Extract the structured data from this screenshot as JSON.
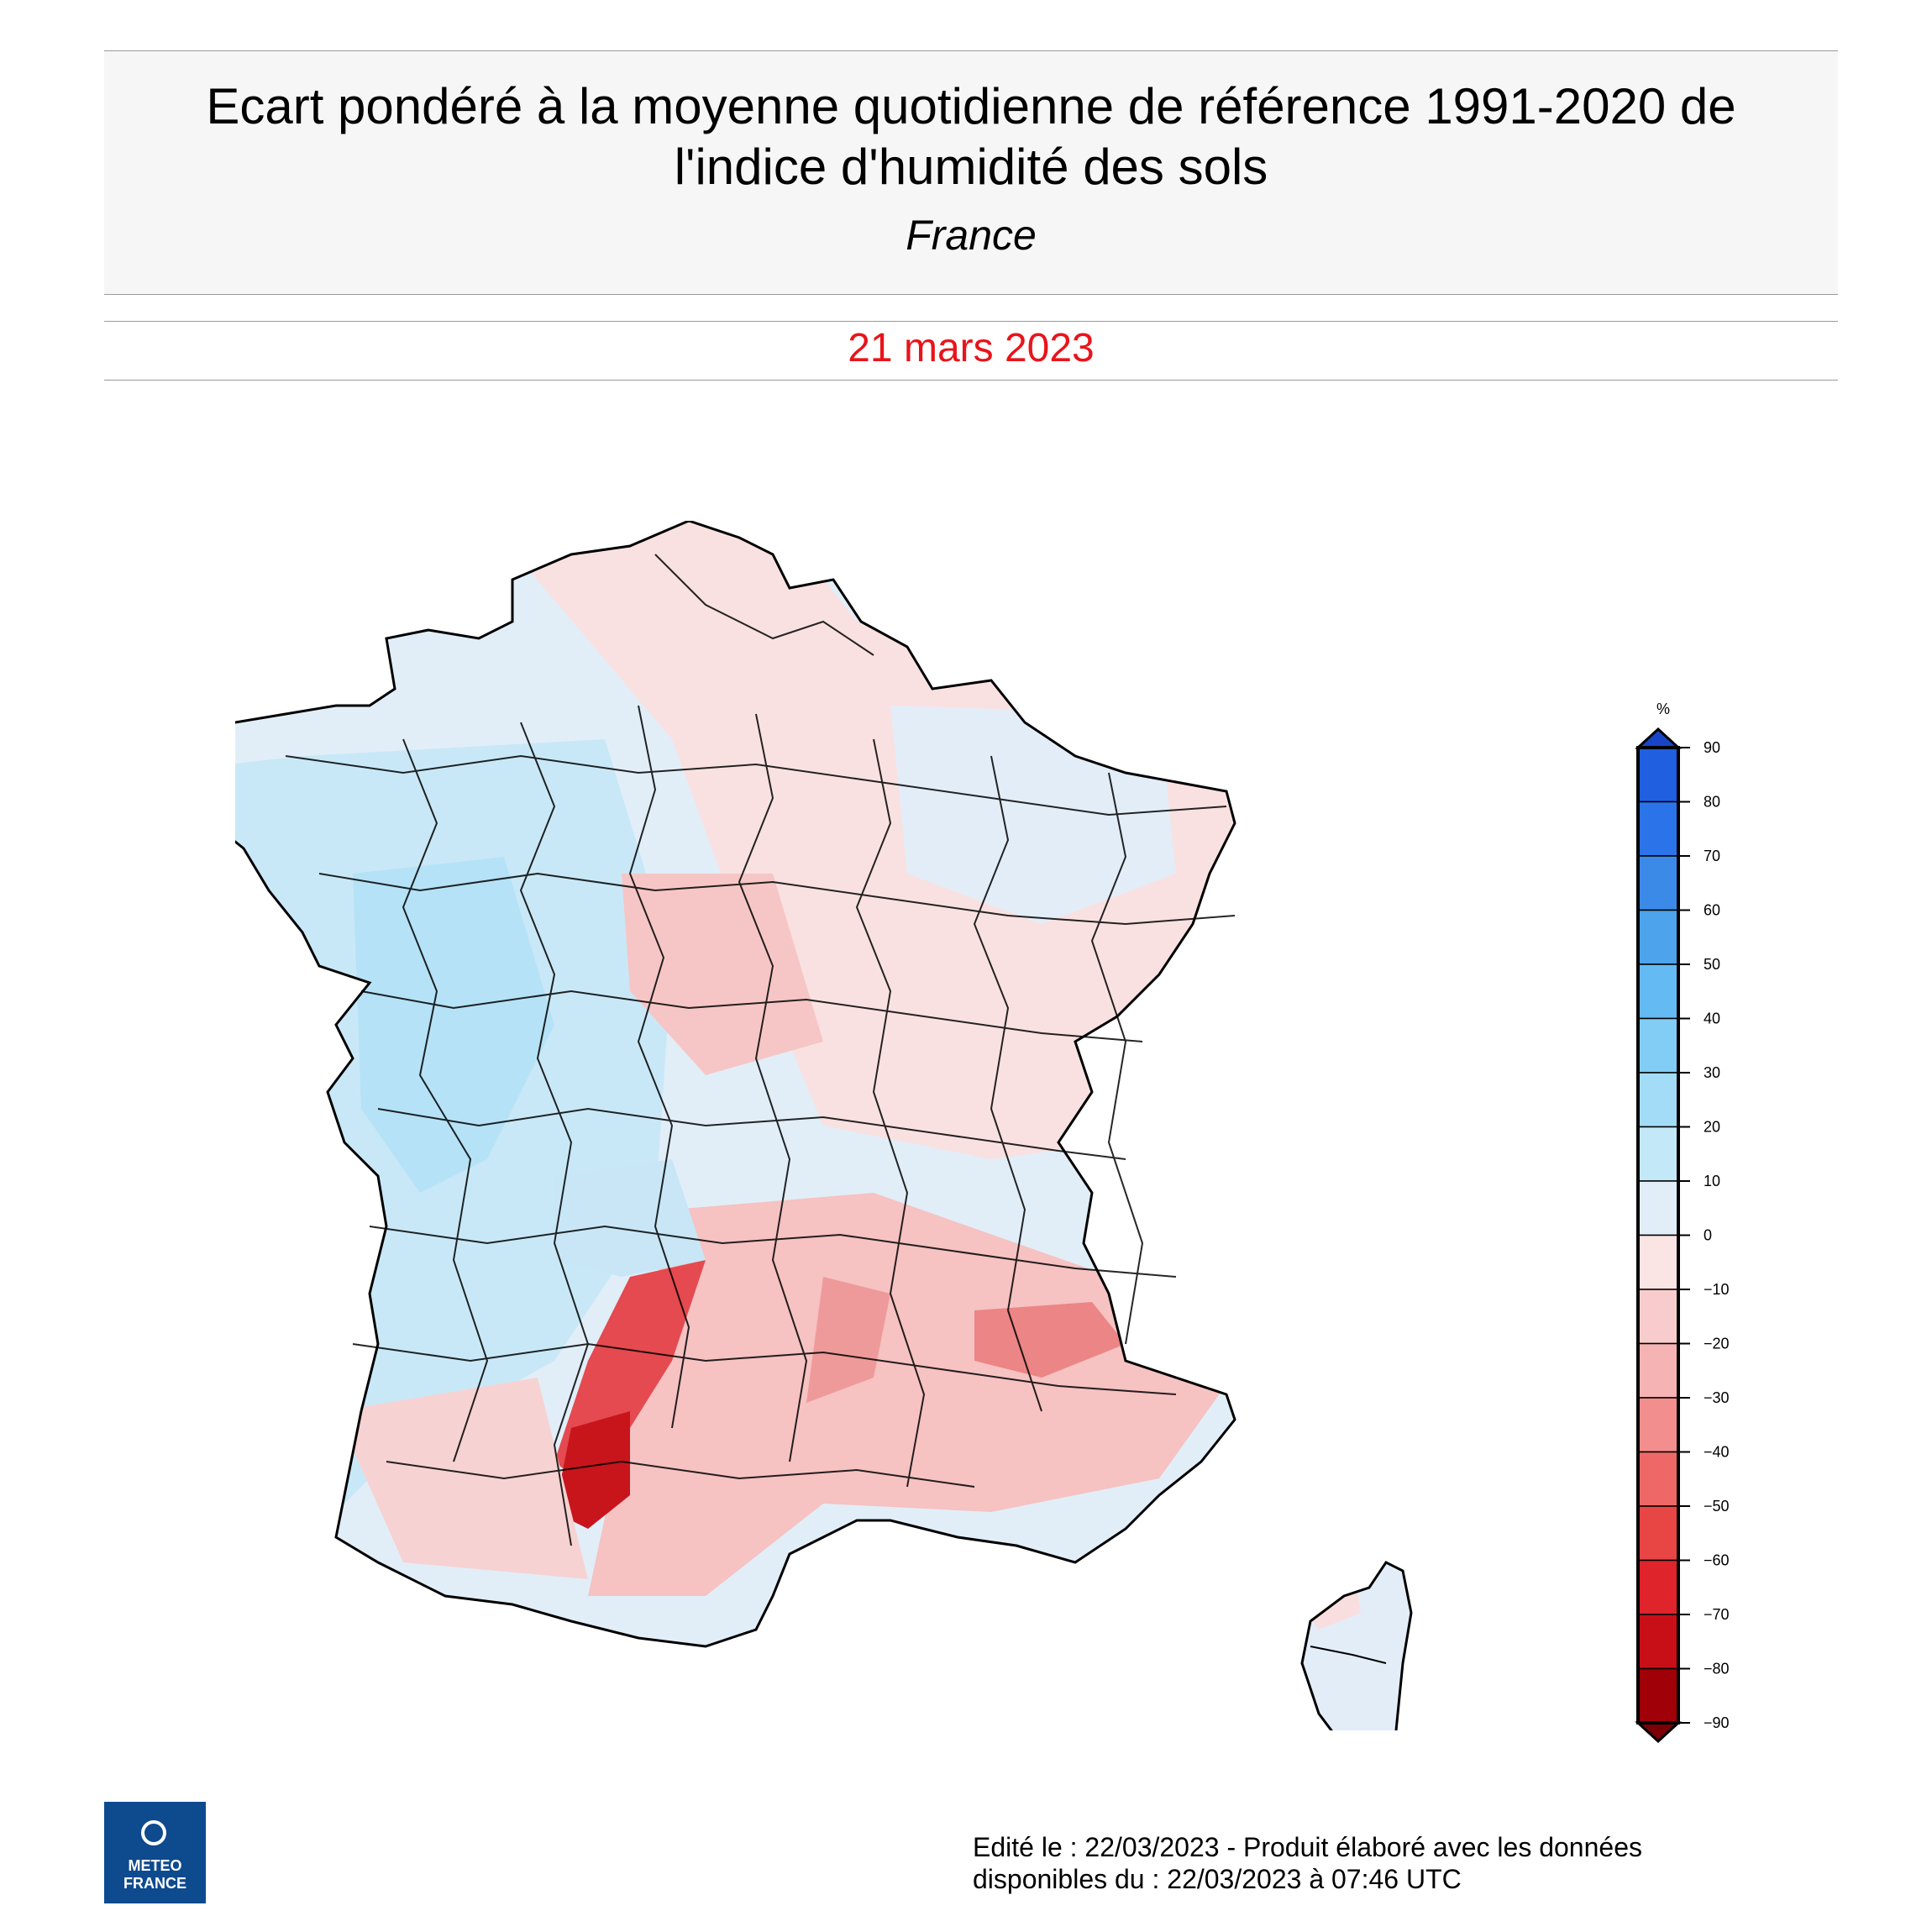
{
  "header": {
    "title_line1": "Ecart pondéré à la moyenne quotidienne de référence 1991-2020 de",
    "title_line2": "l'indice d'humidité des sols",
    "subtitle": "France"
  },
  "date": "21 mars 2023",
  "legend": {
    "unit": "%",
    "ticks": [
      "90",
      "80",
      "70",
      "60",
      "50",
      "40",
      "30",
      "20",
      "10",
      "0",
      "−10",
      "−20",
      "−30",
      "−40",
      "−50",
      "−60",
      "−70",
      "−80",
      "−90"
    ],
    "colors": [
      "#1f5fe0",
      "#2b73e8",
      "#3b8ae8",
      "#4da3ec",
      "#64baf2",
      "#82cdf5",
      "#a3dcf6",
      "#c3e8f8",
      "#e1eef8",
      "#fbe4e4",
      "#f8cccc",
      "#f5b3b3",
      "#f28e8e",
      "#ee6868",
      "#e84545",
      "#e0242b",
      "#c80f17",
      "#a00008"
    ],
    "top_arrow_color": "#1845c8",
    "bottom_arrow_color": "#7a0006"
  },
  "logo": {
    "line1": "METEO",
    "line2": "FRANCE",
    "color": "#0d4a8e"
  },
  "footer": {
    "line1": "Edité le : 22/03/2023 - Produit élaboré avec les données",
    "line2": "disponibles du : 22/03/2023 à 07:46 UTC"
  },
  "map": {
    "regions": [
      "France",
      "Corse"
    ],
    "colors": {
      "outline": "#000000",
      "light_blue": "#dbeef9",
      "mid_blue": "#b7e3f6",
      "light_red": "#f9dcdc",
      "mid_red": "#f2a5a5",
      "deep_red": "#d8262c"
    }
  }
}
